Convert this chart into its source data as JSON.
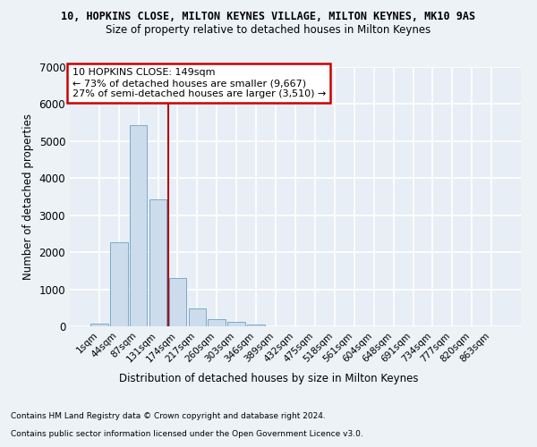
{
  "title1": "10, HOPKINS CLOSE, MILTON KEYNES VILLAGE, MILTON KEYNES, MK10 9AS",
  "title2": "Size of property relative to detached houses in Milton Keynes",
  "xlabel": "Distribution of detached houses by size in Milton Keynes",
  "ylabel": "Number of detached properties",
  "bin_labels": [
    "1sqm",
    "44sqm",
    "87sqm",
    "131sqm",
    "174sqm",
    "217sqm",
    "260sqm",
    "303sqm",
    "346sqm",
    "389sqm",
    "432sqm",
    "475sqm",
    "518sqm",
    "561sqm",
    "604sqm",
    "648sqm",
    "691sqm",
    "734sqm",
    "777sqm",
    "820sqm",
    "863sqm"
  ],
  "bar_values": [
    70,
    2280,
    5430,
    3420,
    1300,
    480,
    200,
    110,
    60,
    0,
    0,
    0,
    0,
    0,
    0,
    0,
    0,
    0,
    0,
    0,
    0
  ],
  "bar_color": "#ccdcec",
  "bar_edgecolor": "#7aaaca",
  "vline_x": 3.5,
  "vline_color": "#aa1111",
  "annotation_text": "10 HOPKINS CLOSE: 149sqm\n← 73% of detached houses are smaller (9,667)\n27% of semi-detached houses are larger (3,510) →",
  "annotation_box_color": "#ffffff",
  "annotation_box_edgecolor": "#cc0000",
  "ylim": [
    0,
    7000
  ],
  "yticks": [
    0,
    1000,
    2000,
    3000,
    4000,
    5000,
    6000,
    7000
  ],
  "footer1": "Contains HM Land Registry data © Crown copyright and database right 2024.",
  "footer2": "Contains public sector information licensed under the Open Government Licence v3.0.",
  "background_color": "#edf2f7",
  "grid_color": "#ffffff",
  "plot_bg_color": "#e8eef5"
}
